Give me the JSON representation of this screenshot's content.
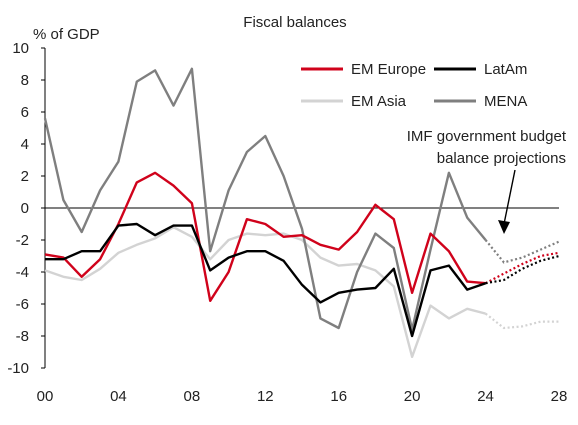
{
  "chart_data": {
    "type": "line",
    "title": "Fiscal balances",
    "ylabel": "% of GDP",
    "xlabel": "",
    "xlim": [
      2000,
      2028
    ],
    "ylim": [
      -10,
      10
    ],
    "x_ticks": [
      {
        "value": 2000,
        "label": "00"
      },
      {
        "value": 2004,
        "label": "04"
      },
      {
        "value": 2008,
        "label": "08"
      },
      {
        "value": 2012,
        "label": "12"
      },
      {
        "value": 2016,
        "label": "16"
      },
      {
        "value": 2020,
        "label": "20"
      },
      {
        "value": 2024,
        "label": "24"
      },
      {
        "value": 2028,
        "label": "28"
      }
    ],
    "y_ticks": [
      -10,
      -8,
      -6,
      -4,
      -2,
      0,
      2,
      4,
      6,
      8,
      10
    ],
    "grid": false,
    "zero_line": true,
    "legend_position": "top-right",
    "annotation": {
      "lines": [
        "IMF government budget",
        "balance projections"
      ],
      "arrow_points_to": {
        "x": 2024.8,
        "y": -2.2
      }
    },
    "series": [
      {
        "name": "EM Europe",
        "color": "#d0021b",
        "x": [
          2000,
          2001,
          2002,
          2003,
          2004,
          2005,
          2006,
          2007,
          2008,
          2009,
          2010,
          2011,
          2012,
          2013,
          2014,
          2015,
          2016,
          2017,
          2018,
          2019,
          2020,
          2021,
          2022,
          2023,
          2024
        ],
        "values": [
          -2.9,
          -3.1,
          -4.3,
          -3.2,
          -1.0,
          1.6,
          2.2,
          1.4,
          0.3,
          -5.8,
          -4.0,
          -0.7,
          -1.0,
          -1.8,
          -1.7,
          -2.3,
          -2.6,
          -1.5,
          0.2,
          -0.7,
          -5.3,
          -1.6,
          -2.7,
          -4.6,
          -4.7
        ],
        "projection_x": [
          2024,
          2025,
          2026,
          2027,
          2028
        ],
        "projection_values": [
          -4.7,
          -4.1,
          -3.5,
          -3.0,
          -2.8
        ]
      },
      {
        "name": "LatAm",
        "color": "#000000",
        "x": [
          2000,
          2001,
          2002,
          2003,
          2004,
          2005,
          2006,
          2007,
          2008,
          2009,
          2010,
          2011,
          2012,
          2013,
          2014,
          2015,
          2016,
          2017,
          2018,
          2019,
          2020,
          2021,
          2022,
          2023,
          2024
        ],
        "values": [
          -3.2,
          -3.2,
          -2.7,
          -2.7,
          -1.1,
          -1.0,
          -1.7,
          -1.1,
          -1.1,
          -3.9,
          -3.1,
          -2.7,
          -2.7,
          -3.3,
          -4.8,
          -5.9,
          -5.3,
          -5.1,
          -5.0,
          -3.8,
          -8.0,
          -3.9,
          -3.6,
          -5.1,
          -4.7
        ],
        "projection_x": [
          2024,
          2025,
          2026,
          2027,
          2028
        ],
        "projection_values": [
          -4.7,
          -4.5,
          -3.8,
          -3.3,
          -3.0
        ]
      },
      {
        "name": "EM Asia",
        "color": "#d3d3d3",
        "x": [
          2000,
          2001,
          2002,
          2003,
          2004,
          2005,
          2006,
          2007,
          2008,
          2009,
          2010,
          2011,
          2012,
          2013,
          2014,
          2015,
          2016,
          2017,
          2018,
          2019,
          2020,
          2021,
          2022,
          2023,
          2024
        ],
        "values": [
          -3.9,
          -4.3,
          -4.5,
          -3.8,
          -2.8,
          -2.3,
          -1.9,
          -1.2,
          -1.8,
          -3.2,
          -2.0,
          -1.6,
          -1.7,
          -1.6,
          -2.0,
          -3.1,
          -3.6,
          -3.5,
          -3.9,
          -4.9,
          -9.3,
          -6.1,
          -6.9,
          -6.3,
          -6.6
        ],
        "projection_x": [
          2024,
          2025,
          2026,
          2027,
          2028
        ],
        "projection_values": [
          -6.6,
          -7.5,
          -7.4,
          -7.1,
          -7.1
        ]
      },
      {
        "name": "MENA",
        "color": "#7f7f7f",
        "x": [
          2000,
          2001,
          2002,
          2003,
          2004,
          2005,
          2006,
          2007,
          2008,
          2009,
          2010,
          2011,
          2012,
          2013,
          2014,
          2015,
          2016,
          2017,
          2018,
          2019,
          2020,
          2021,
          2022,
          2023,
          2024
        ],
        "values": [
          5.6,
          0.5,
          -1.5,
          1.1,
          2.9,
          7.9,
          8.6,
          6.4,
          8.7,
          -2.7,
          1.1,
          3.5,
          4.5,
          2.0,
          -1.3,
          -6.9,
          -7.5,
          -4.0,
          -1.6,
          -2.5,
          -7.6,
          -2.6,
          2.2,
          -0.6,
          -2.0
        ],
        "projection_x": [
          2024,
          2025,
          2026,
          2027,
          2028
        ],
        "projection_values": [
          -2.0,
          -3.4,
          -3.1,
          -2.6,
          -2.1
        ]
      }
    ]
  }
}
